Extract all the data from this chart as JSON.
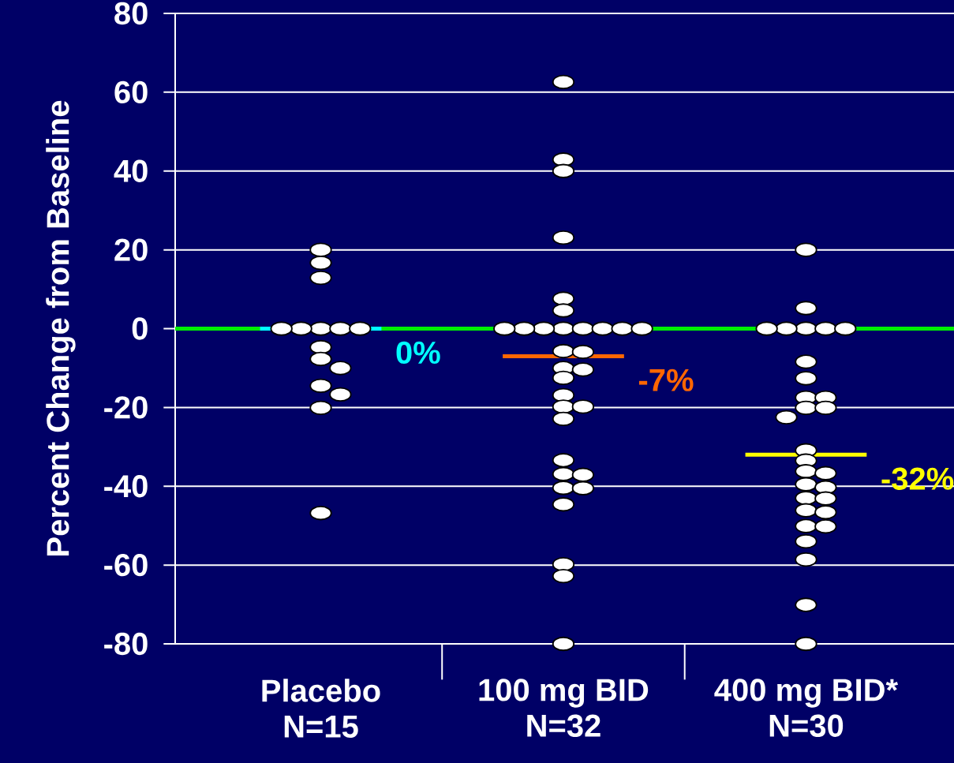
{
  "chart_data": {
    "type": "scatter",
    "ylabel": "Percent Change from Baseline",
    "categories": [
      "Placebo N=15",
      "100 mg BID N=32",
      "400 mg BID* N=30"
    ],
    "ylim": [
      -80,
      80
    ],
    "yticks": [
      -80,
      -60,
      -40,
      -20,
      0,
      20,
      40,
      60,
      80
    ],
    "grid": "y",
    "marker": "circle",
    "ref_lines": [
      {
        "axis": "y",
        "value": 0,
        "color": "#00ee00"
      },
      {
        "axis": "y",
        "value": 0,
        "label": "0%",
        "color": "#00ffff"
      },
      {
        "axis": "y",
        "value": -7,
        "label": "-7%",
        "color": "#ff6600"
      },
      {
        "axis": "y",
        "value": -32,
        "label": "-32%",
        "color": "#ffff00"
      }
    ],
    "series": [
      {
        "color": "#ffffff",
        "x": [
          "Placebo N=15",
          "Placebo N=15",
          "Placebo N=15",
          "Placebo N=15",
          "Placebo N=15",
          "Placebo N=15",
          "Placebo N=15",
          "Placebo N=15",
          "Placebo N=15",
          "Placebo N=15",
          "Placebo N=15",
          "Placebo N=15",
          "Placebo N=15",
          "Placebo N=15",
          "Placebo N=15"
        ],
        "values": [
          20,
          16.7,
          12.9,
          0,
          0,
          0,
          0,
          0,
          -4.7,
          -7.7,
          -10,
          -14.5,
          -16.7,
          -20.1,
          -46.8
        ]
      },
      {
        "color": "#ffffff",
        "x": [
          "100 mg BID N=32",
          "100 mg BID N=32",
          "100 mg BID N=32",
          "100 mg BID N=32",
          "100 mg BID N=32",
          "100 mg BID N=32",
          "100 mg BID N=32",
          "100 mg BID N=32",
          "100 mg BID N=32",
          "100 mg BID N=32",
          "100 mg BID N=32",
          "100 mg BID N=32",
          "100 mg BID N=32",
          "100 mg BID N=32",
          "100 mg BID N=32",
          "100 mg BID N=32",
          "100 mg BID N=32",
          "100 mg BID N=32",
          "100 mg BID N=32",
          "100 mg BID N=32",
          "100 mg BID N=32",
          "100 mg BID N=32",
          "100 mg BID N=32",
          "100 mg BID N=32",
          "100 mg BID N=32",
          "100 mg BID N=32",
          "100 mg BID N=32",
          "100 mg BID N=32",
          "100 mg BID N=32",
          "100 mg BID N=32",
          "100 mg BID N=32",
          "100 mg BID N=32"
        ],
        "values": [
          62.6,
          42.9,
          40,
          23.1,
          7.6,
          4.6,
          0,
          0,
          0,
          0,
          0,
          0,
          0,
          0,
          -5.7,
          -5.9,
          -10,
          -10.4,
          -12.5,
          -16.9,
          -19.8,
          -19.8,
          -22.9,
          -33.4,
          -36.9,
          -37.1,
          -40.4,
          -40.5,
          -44.6,
          -59.8,
          -62.8,
          -80
        ]
      },
      {
        "color": "#ffffff",
        "x": [
          "400 mg BID* N=30",
          "400 mg BID* N=30",
          "400 mg BID* N=30",
          "400 mg BID* N=30",
          "400 mg BID* N=30",
          "400 mg BID* N=30",
          "400 mg BID* N=30",
          "400 mg BID* N=30",
          "400 mg BID* N=30",
          "400 mg BID* N=30",
          "400 mg BID* N=30",
          "400 mg BID* N=30",
          "400 mg BID* N=30",
          "400 mg BID* N=30",
          "400 mg BID* N=30",
          "400 mg BID* N=30",
          "400 mg BID* N=30",
          "400 mg BID* N=30",
          "400 mg BID* N=30",
          "400 mg BID* N=30",
          "400 mg BID* N=30",
          "400 mg BID* N=30",
          "400 mg BID* N=30",
          "400 mg BID* N=30",
          "400 mg BID* N=30",
          "400 mg BID* N=30",
          "400 mg BID* N=30",
          "400 mg BID* N=30",
          "400 mg BID* N=30",
          "400 mg BID* N=30"
        ],
        "values": [
          20,
          5.2,
          0,
          0,
          0,
          0,
          0,
          -8.4,
          -12.6,
          -17.5,
          -17.5,
          -20.1,
          -20.1,
          -22.5,
          -30.9,
          -33.5,
          -36.2,
          -36.7,
          -39.5,
          -40.3,
          -43,
          -43.1,
          -46.1,
          -46.6,
          -50.1,
          -50.2,
          -54,
          -58.6,
          -70.1,
          -80
        ]
      }
    ]
  }
}
